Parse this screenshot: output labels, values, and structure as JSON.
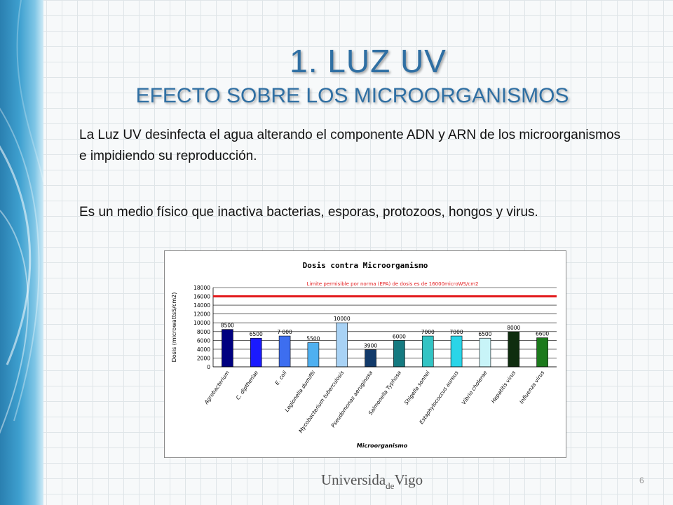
{
  "slide": {
    "title": "1. LUZ UV",
    "subtitle": "EFECTO SOBRE LOS MICROORGANISMOS",
    "paragraphs": [
      "La Luz UV desinfecta el agua alterando el componente ADN y ARN de los microorganismos e impidiendo su reproducción.",
      "Es un medio físico que inactiva bacterias, esporas, protozoos, hongos y virus."
    ],
    "footer": {
      "logo_part1": "Universida",
      "logo_part2": "de",
      "logo_part3": "Vigo"
    },
    "page_number": "6"
  },
  "chart_data": {
    "type": "bar",
    "title": "Dosis contra Microorganismo",
    "xlabel": "Microorganismo",
    "ylabel": "Dosis (microwattsS/cm2)",
    "ylim": [
      0,
      18000
    ],
    "yticks": [
      0,
      2000,
      4000,
      6000,
      8000,
      10000,
      12000,
      14000,
      16000,
      18000
    ],
    "grid": true,
    "reference_line": {
      "value": 16000,
      "label": "Limite permisible por norma (EPA) de dosis es de 16000microWS/cm2",
      "color": "#e31a1c"
    },
    "categories": [
      "Agrobacterium",
      "C. diptheriae",
      "E. coli",
      "Legionella dumiffii",
      "Mycobacterium tuberculosis",
      "Pseudomonas aeruginosa",
      "Salmonella Typhosa",
      "Shigella sonnei",
      "Estaphylococcus aureus",
      "Vibrio cholerae",
      "Hepatitis virus",
      "Influenza virus"
    ],
    "values": [
      8500,
      6500,
      7000,
      5500,
      10000,
      3900,
      6000,
      7000,
      7000,
      6500,
      8000,
      6600
    ],
    "data_labels": [
      "8500",
      "6500",
      "7 000",
      "5500",
      "10000",
      "3900",
      "6000",
      "7000",
      "7000",
      "6500",
      "8000",
      "6600"
    ],
    "colors": [
      "#000080",
      "#1a1aff",
      "#3d6ef0",
      "#4fb0f0",
      "#a8d2f5",
      "#123a6a",
      "#157a80",
      "#33c4c4",
      "#2ad5e8",
      "#c8f4f8",
      "#0f2d0f",
      "#1c7a1c"
    ]
  }
}
